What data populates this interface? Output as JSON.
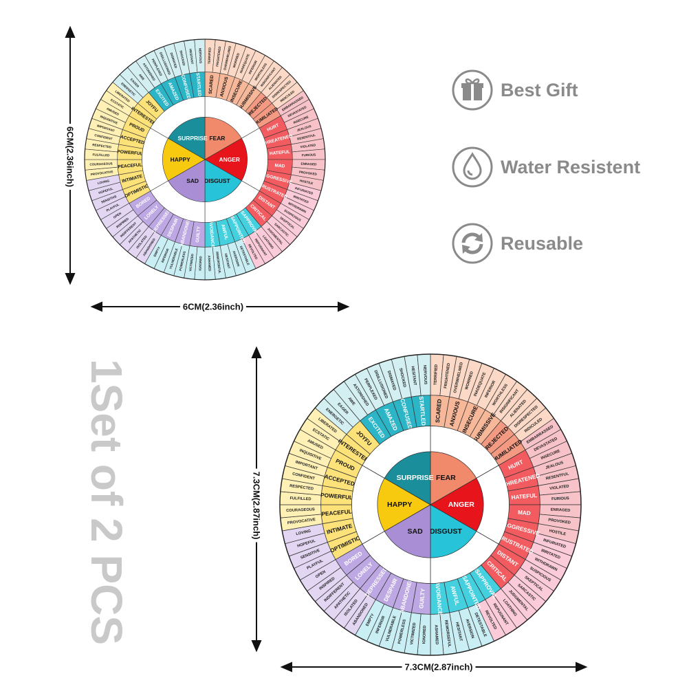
{
  "features": [
    {
      "icon": "gift-icon",
      "label": "Best Gift"
    },
    {
      "icon": "water-drop-icon",
      "label": "Water Resistent"
    },
    {
      "icon": "recycle-icon",
      "label": "Reusable"
    }
  ],
  "dimensions": {
    "small_height": "6CM(2.36inch)",
    "small_width": "6CM(2.36inch)",
    "large_height": "7.3CM(2.87inch)",
    "large_width": "7.3CM(2.87inch)"
  },
  "set_title": "1Set of 2 PCS",
  "wheel": {
    "core": [
      {
        "label": "FEAR",
        "color": "#f08a6a"
      },
      {
        "label": "ANGER",
        "color": "#e8141c"
      },
      {
        "label": "DISGUST",
        "color": "#27c3d9"
      },
      {
        "label": "SAD",
        "color": "#a98ed6"
      },
      {
        "label": "HAPPY",
        "color": "#f7c90f"
      },
      {
        "label": "SURPRISE",
        "color": "#1a8e9a"
      }
    ],
    "middle": [
      {
        "label": "SCARED",
        "color": "#f7b89a"
      },
      {
        "label": "ANXIOUS",
        "color": "#f7b89a"
      },
      {
        "label": "INSECURE",
        "color": "#f7b89a"
      },
      {
        "label": "SUBMISSIVE",
        "color": "#f7b89a"
      },
      {
        "label": "REJECTED",
        "color": "#f49a82"
      },
      {
        "label": "HUMILIATED",
        "color": "#f49a82"
      },
      {
        "label": "HURT",
        "color": "#f25c60"
      },
      {
        "label": "THREATENED",
        "color": "#f25c60"
      },
      {
        "label": "HATEFUL",
        "color": "#f25c60"
      },
      {
        "label": "MAD",
        "color": "#f25c60"
      },
      {
        "label": "AGGRESSIVE",
        "color": "#f25c60"
      },
      {
        "label": "FRUSTRATED",
        "color": "#f25c60"
      },
      {
        "label": "DISTANT",
        "color": "#f25c60"
      },
      {
        "label": "CRITICAL",
        "color": "#f25c60"
      },
      {
        "label": "DISAPPROVAL",
        "color": "#45d0e0"
      },
      {
        "label": "DISAPPOINTED",
        "color": "#45d0e0"
      },
      {
        "label": "AWFUL",
        "color": "#45d0e0"
      },
      {
        "label": "AVOIDANCE",
        "color": "#45d0e0"
      },
      {
        "label": "GUILTY",
        "color": "#bda8e3"
      },
      {
        "label": "ABANDONED",
        "color": "#bda8e3"
      },
      {
        "label": "DESPAIR",
        "color": "#bda8e3"
      },
      {
        "label": "DEPRESSED",
        "color": "#bda8e3"
      },
      {
        "label": "LONELY",
        "color": "#bda8e3"
      },
      {
        "label": "BORED",
        "color": "#bda8e3"
      },
      {
        "label": "OPTIMISTIC",
        "color": "#fde27a"
      },
      {
        "label": "INTIMATE",
        "color": "#fde27a"
      },
      {
        "label": "PEACEFUL",
        "color": "#fde27a"
      },
      {
        "label": "POWERFUL",
        "color": "#fde27a"
      },
      {
        "label": "ACCEPTED",
        "color": "#fde27a"
      },
      {
        "label": "PROUD",
        "color": "#fde27a"
      },
      {
        "label": "INTERESTED",
        "color": "#fde27a"
      },
      {
        "label": "JOYFU",
        "color": "#fde27a"
      },
      {
        "label": "EXCITED",
        "color": "#2bb5c6"
      },
      {
        "label": "AMAZED",
        "color": "#2bb5c6"
      },
      {
        "label": "CONFUSED",
        "color": "#2bb5c6"
      },
      {
        "label": "STARTLED",
        "color": "#2bb5c6"
      }
    ],
    "outer": [
      "TERRIFIED",
      "FRIGHTENED",
      "OVERWHELMED",
      "WORRIED",
      "INADEQUATE",
      "INFERIOR",
      "WORTHLESS",
      "INSIGNIFICANT",
      "ALIENATED",
      "DISRESPECTED",
      "RIDICULED",
      "EMBARRASSED",
      "DEVASTATED",
      "INSECURE",
      "JEALOUS",
      "RESENTFUL",
      "VIOLATED",
      "FURIOUS",
      "ENRAGED",
      "PROVOKED",
      "HOSTILE",
      "INFURIATED",
      "IRRITATED",
      "WITHDRAWN",
      "SUSPICIOUS",
      "SKEPTICAL",
      "SARCASTIC",
      "JUDGMENTAL",
      "LOATHING",
      "REPUGNANT",
      "REVOLTED",
      "DETESTABLE",
      "AVERSION",
      "HESITANT",
      "REMORSEFUL",
      "ASHAMED",
      "IGNORED",
      "VICTIMIZED",
      "POWERLESS",
      "VULNERABLE",
      "INFERIOR",
      "EMPTY",
      "ABANDONED",
      "ISOLATED",
      "APATHETIC",
      "INDIFFERENT",
      "INSPIRED",
      "OPEN",
      "PLAYFUL",
      "SENSITIVE",
      "HOPEFUL",
      "LOVING",
      "PROVOCATIVE",
      "COURAGEOUS",
      "FULFILLED",
      "RESPECTED",
      "CONFIDENT",
      "IMPORTANT",
      "INQUISITIVE",
      "AMUSED",
      "ECSTATIC",
      "LIBERATED",
      "ENERGETIC",
      "EAGER",
      "AWE",
      "ASTONISHED",
      "PERPLEXED",
      "DISILLUSIONED",
      "DISMAYED",
      "SHOCKED",
      "HESITANT",
      "NERVOUS"
    ],
    "outer_colors": [
      "#fbd9c6",
      "#f7c3c8",
      "#fbcbd9",
      "#c9eef4",
      "#e2d6f3",
      "#fff1b5",
      "#d3eff2"
    ]
  }
}
